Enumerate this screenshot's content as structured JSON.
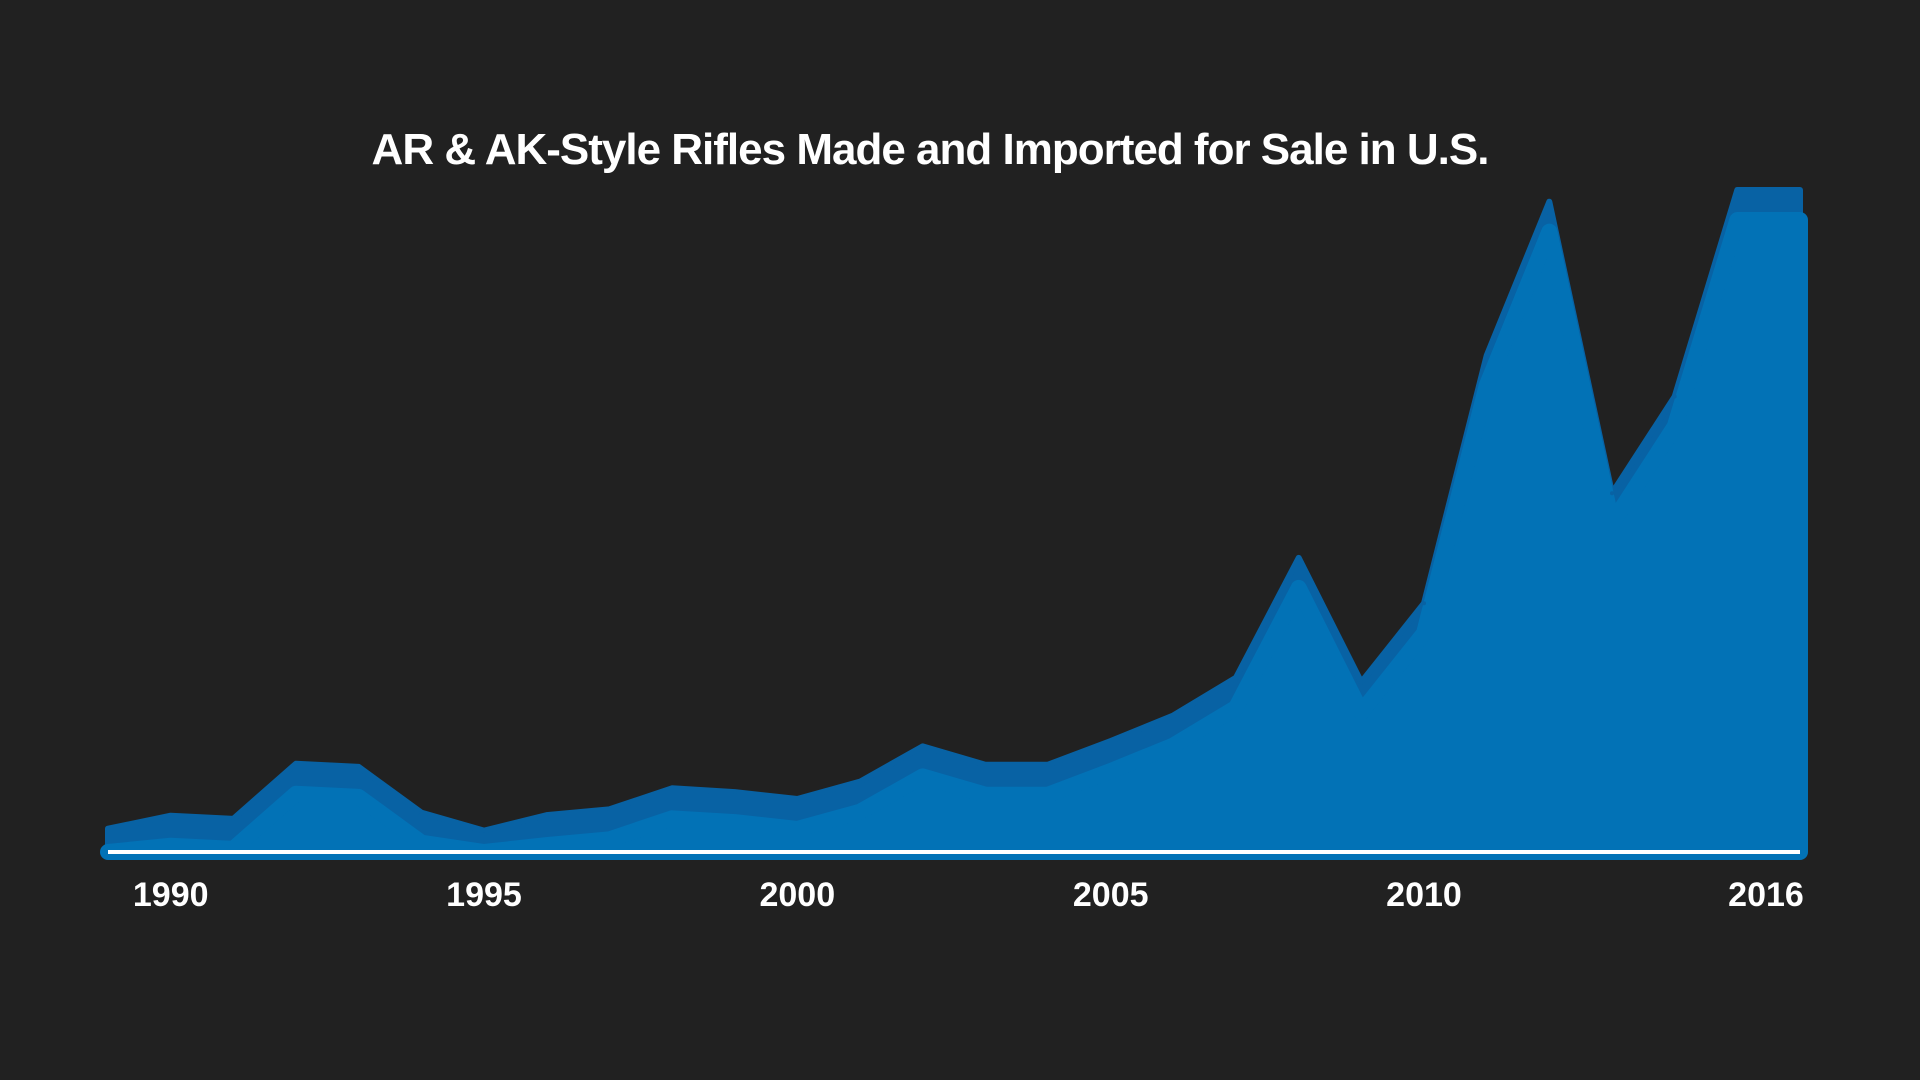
{
  "chart_data": {
    "type": "area",
    "title": "AR & AK-Style Rifles Made and Imported for Sale in U.S.",
    "xlabel": "",
    "ylabel": "",
    "x": [
      1989,
      1990,
      1991,
      1992,
      1993,
      1994,
      1995,
      1996,
      1997,
      1998,
      1999,
      2000,
      2001,
      2002,
      2003,
      2004,
      2005,
      2006,
      2007,
      2008,
      2009,
      2010,
      2011,
      2012,
      2013,
      2014,
      2015,
      2016
    ],
    "series": [
      {
        "name": "",
        "values": [
          74000,
          115000,
          105000,
          280000,
          270000,
          125000,
          68000,
          117000,
          135000,
          202000,
          190000,
          168000,
          223000,
          335000,
          277000,
          277000,
          352000,
          433000,
          553000,
          933000,
          539000,
          789000,
          1575000,
          2063000,
          1138000,
          1445000,
          2100000,
          2100000
        ]
      }
    ],
    "xticks": [
      "1990",
      "1995",
      "2000",
      "2005",
      "2010",
      "2016"
    ],
    "xlim": [
      1989,
      2016
    ],
    "ylim": [
      0,
      2100000
    ],
    "grid": false,
    "legend": "none",
    "colors": {
      "background": "#212121",
      "area_outer": "#0862a4",
      "area_inner": "#0272b6",
      "baseline": "#ffffff",
      "text": "#ffffff"
    }
  }
}
